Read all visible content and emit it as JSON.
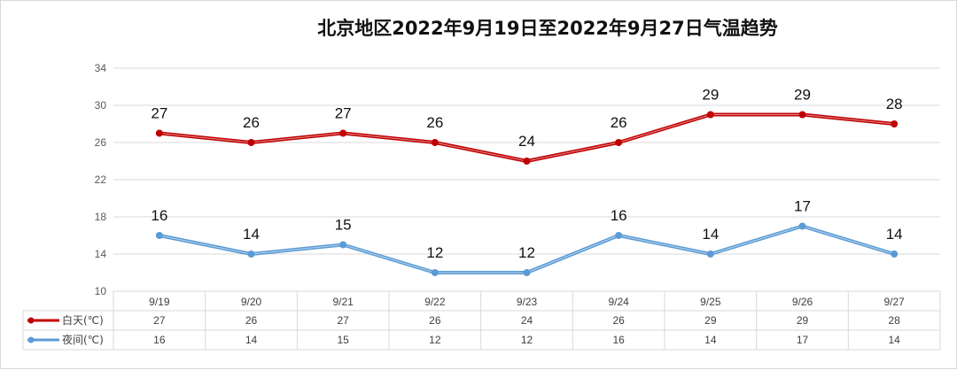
{
  "chart_data": {
    "type": "line",
    "title": "北京地区2022年9月19日至2022年9月27日气温趋势",
    "categories": [
      "9/19",
      "9/20",
      "9/21",
      "9/22",
      "9/23",
      "9/24",
      "9/25",
      "9/26",
      "9/27"
    ],
    "series": [
      {
        "name": "白天(℃)",
        "color": "#c00000",
        "values": [
          27,
          26,
          27,
          26,
          24,
          26,
          29,
          29,
          28
        ]
      },
      {
        "name": "夜间(℃)",
        "color": "#5b9bd5",
        "values": [
          16,
          14,
          15,
          12,
          12,
          16,
          14,
          17,
          14
        ]
      }
    ],
    "ylim": [
      10,
      34
    ],
    "yticks": [
      10,
      14,
      18,
      22,
      26,
      30,
      34
    ],
    "grid": true,
    "legend": "data-table-bottom",
    "data_labels": true
  }
}
